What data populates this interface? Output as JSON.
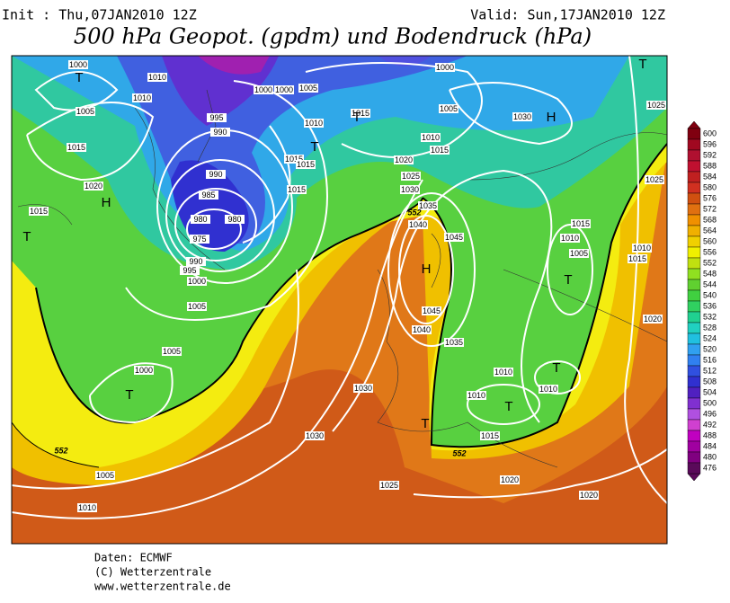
{
  "header": {
    "init": "Init : Thu,07JAN2010 12Z",
    "valid": "Valid: Sun,17JAN2010 12Z",
    "title": "500 hPa Geopot. (gpdm) und Bodendruck (hPa)"
  },
  "map": {
    "pressure_labels": [
      1000,
      1010,
      1010,
      1005,
      1015,
      1020,
      1015,
      995,
      990,
      990,
      985,
      980,
      980,
      975,
      990,
      995,
      1000,
      1005,
      1005,
      1000,
      1005,
      1010,
      1000,
      1000,
      1005,
      1010,
      1015,
      1015,
      1015,
      1015,
      1020,
      1025,
      1030,
      1035,
      1040,
      1045,
      1045,
      1040,
      1035,
      1030,
      1030,
      1025,
      1010,
      1010,
      1015,
      1020,
      1020,
      1010,
      1015,
      1010,
      1005,
      1010,
      1015,
      1020,
      1025,
      1025,
      1030,
      1000,
      1005,
      1010,
      1015
    ],
    "centers": [
      "T",
      "H",
      "T",
      "T",
      "T",
      "T",
      "H",
      "T",
      "H",
      "T",
      "T",
      "T",
      "T"
    ],
    "contour_labels": [
      552,
      552,
      552
    ]
  },
  "colorbar": {
    "levels": [
      600,
      596,
      592,
      588,
      584,
      580,
      576,
      572,
      568,
      564,
      560,
      556,
      552,
      548,
      544,
      540,
      536,
      532,
      528,
      524,
      520,
      516,
      512,
      508,
      504,
      500,
      496,
      492,
      488,
      484,
      480,
      476
    ],
    "colors": [
      "#800010",
      "#a00820",
      "#b01030",
      "#c01030",
      "#c02020",
      "#d03020",
      "#d05010",
      "#e07010",
      "#f09000",
      "#f0b000",
      "#f0d000",
      "#f0f000",
      "#c0e010",
      "#90e020",
      "#60d030",
      "#40d040",
      "#30d060",
      "#20d090",
      "#20d0c0",
      "#20c0e0",
      "#30a0f0",
      "#3080f0",
      "#3050e0",
      "#3030d0",
      "#5020c0",
      "#8030d0",
      "#b050e0",
      "#d040d0",
      "#c000c0",
      "#a000a0",
      "#800080",
      "#5a0a5a"
    ]
  },
  "footer": {
    "lines": [
      "Daten: ECMWF",
      "(C) Wetterzentrale",
      "www.wetterzentrale.de"
    ]
  }
}
